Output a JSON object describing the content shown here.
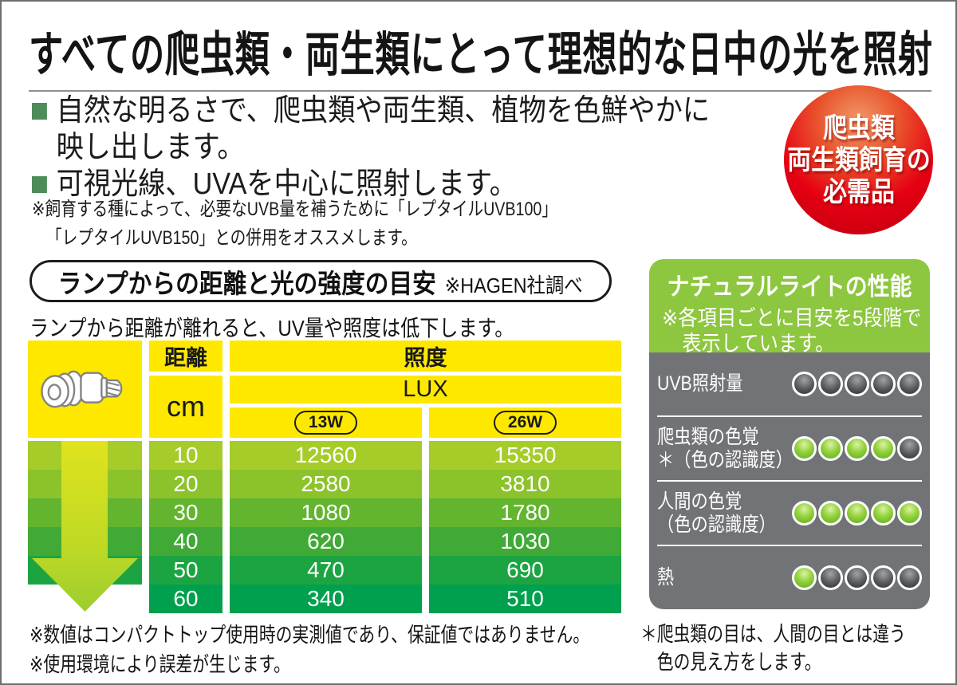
{
  "header": {
    "title": "すべての爬虫類・両生類にとって理想的な日中の光を照射"
  },
  "bullets": [
    {
      "lines": [
        "自然な明るさで、爬虫類や両生類、植物を色鮮やかに",
        "映し出します。"
      ]
    },
    {
      "lines": [
        "可視光線、UVAを中心に照射します。"
      ]
    }
  ],
  "uvb_note": {
    "line1": "※飼育する種によって、必要なUVB量を補うために「レプタイルUVB100」",
    "line2": "「レプタイルUVB150」との併用をオススメします。"
  },
  "badge": {
    "lines": [
      "爬虫類",
      "両生類飼育の",
      "必需品"
    ],
    "color": "#e60012"
  },
  "section": {
    "title": "ランプからの距離と光の強度の目安",
    "source": "※HAGEN社調べ",
    "subtitle": "ランプから距離が離れると、UV量や照度は低下します。"
  },
  "table": {
    "distance_header": "距離",
    "unit": "cm",
    "illuminance_header": "照度",
    "lux_label": "LUX",
    "watt_labels": [
      "13W",
      "26W"
    ],
    "header_color": "#ffe800",
    "rows": [
      {
        "distance": "10",
        "w13": "12560",
        "w26": "15350",
        "color": "#a6cc2a"
      },
      {
        "distance": "20",
        "w13": "2580",
        "w26": "3810",
        "color": "#8cc32b"
      },
      {
        "distance": "30",
        "w13": "1080",
        "w26": "1780",
        "color": "#63b52f"
      },
      {
        "distance": "40",
        "w13": "620",
        "w26": "1030",
        "color": "#41aa37"
      },
      {
        "distance": "50",
        "w13": "470",
        "w26": "690",
        "color": "#1ca443"
      },
      {
        "distance": "60",
        "w13": "340",
        "w26": "510",
        "color": "#00a04e"
      }
    ]
  },
  "chart_data": {
    "type": "table",
    "title": "ランプからの距離と光の強度の目安（照度 LUX）",
    "columns": [
      "距離 cm",
      "13W",
      "26W"
    ],
    "rows": [
      [
        10,
        12560,
        15350
      ],
      [
        20,
        2580,
        3810
      ],
      [
        30,
        1080,
        1780
      ],
      [
        40,
        620,
        1030
      ],
      [
        50,
        470,
        690
      ],
      [
        60,
        340,
        510
      ]
    ]
  },
  "performance": {
    "title": "ナチュラルライトの性能",
    "note_line1": "※各項目ごとに目安を5段階で",
    "note_line2": "表示しています。",
    "header_color": "#8dc63f",
    "panel_color": "#727376",
    "items": [
      {
        "label_lines": [
          "UVB照射量"
        ],
        "rating": 0,
        "max": 5
      },
      {
        "label_lines": [
          "爬虫類の色覚",
          "＊（色の認識度）"
        ],
        "rating": 4,
        "max": 5
      },
      {
        "label_lines": [
          "人間の色覚",
          "（色の認識度）"
        ],
        "rating": 5,
        "max": 5
      },
      {
        "label_lines": [
          "熱"
        ],
        "rating": 1,
        "max": 5
      }
    ]
  },
  "footnotes": {
    "left": [
      "※数値はコンパクトトップ使用時の実測値であり、保証値ではありません。",
      "※使用環境により誤差が生じます。"
    ],
    "right": [
      "＊爬虫類の目は、人間の目とは違う",
      "色の見え方をします。"
    ]
  }
}
